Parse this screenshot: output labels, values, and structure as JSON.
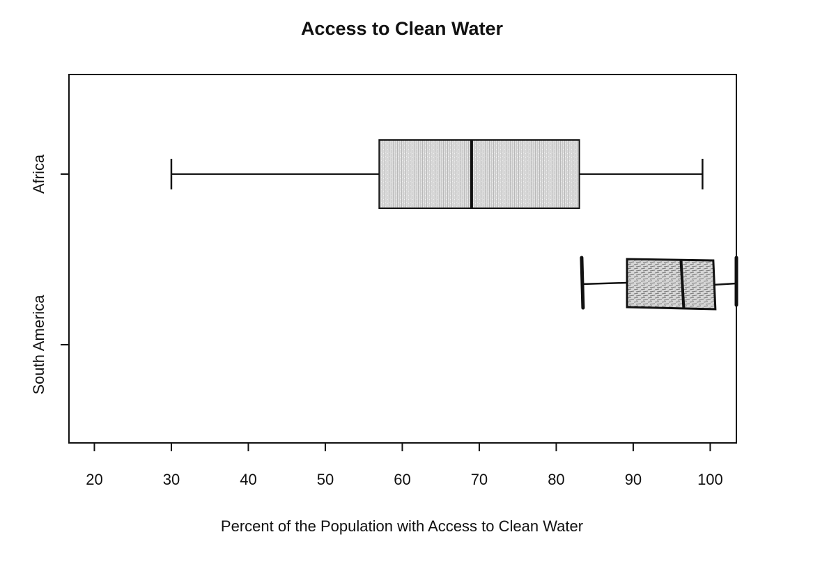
{
  "chart_data": {
    "type": "boxplot",
    "orientation": "horizontal",
    "title": "Access to Clean Water",
    "xlabel": "Percent of the Population with Access to Clean Water",
    "ylabel": "",
    "xlim": [
      16.7,
      103.4
    ],
    "xticks": [
      20,
      30,
      40,
      50,
      60,
      70,
      80,
      90,
      100
    ],
    "xtick_labels": [
      "20",
      "30",
      "40",
      "50",
      "60",
      "70",
      "80",
      "90",
      "100"
    ],
    "categories": [
      "Africa",
      "South America"
    ],
    "series": [
      {
        "name": "Africa",
        "min": 30,
        "q1": 57,
        "median": 69,
        "q3": 83,
        "max": 99,
        "style": "printed"
      },
      {
        "name": "South America",
        "min": 83.3,
        "q1": 89.2,
        "median": 96.2,
        "q3": 100.4,
        "max": 103.4,
        "style": "hand-drawn"
      }
    ],
    "grid": false,
    "colors": {
      "box_fill": "#d4d4d4",
      "sketch_fill": "#c4c4c4",
      "stroke": "#111111"
    }
  }
}
